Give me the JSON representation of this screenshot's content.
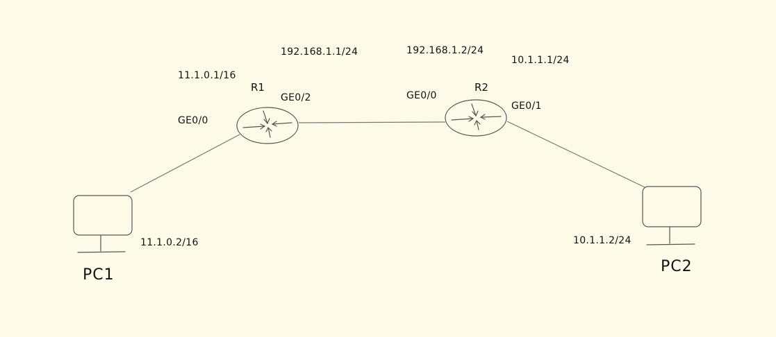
{
  "colors": {
    "background": "#fdfbe7",
    "ink": "#111111",
    "line": "#777777"
  },
  "devices": {
    "r1": {
      "label": "R1",
      "icon": "router-icon"
    },
    "r2": {
      "label": "R2",
      "icon": "router-icon"
    },
    "pc1": {
      "label": "PC1",
      "icon": "computer-icon"
    },
    "pc2": {
      "label": "PC2",
      "icon": "computer-icon"
    }
  },
  "interfaces": {
    "r1_ge0_0": "GE0/0",
    "r1_ge0_2": "GE0/2",
    "r2_ge0_0": "GE0/0",
    "r2_ge0_1": "GE0/1"
  },
  "addresses": {
    "r1_ge0_0_ip": "11.1.0.1/16",
    "r1_ge0_2_ip": "192.168.1.1/24",
    "r2_ge0_0_ip": "192.168.1.2/24",
    "r2_ge0_1_ip": "10.1.1.1/24",
    "pc1_ip": "11.1.0.2/16",
    "pc2_ip": "10.1.1.2/24"
  }
}
